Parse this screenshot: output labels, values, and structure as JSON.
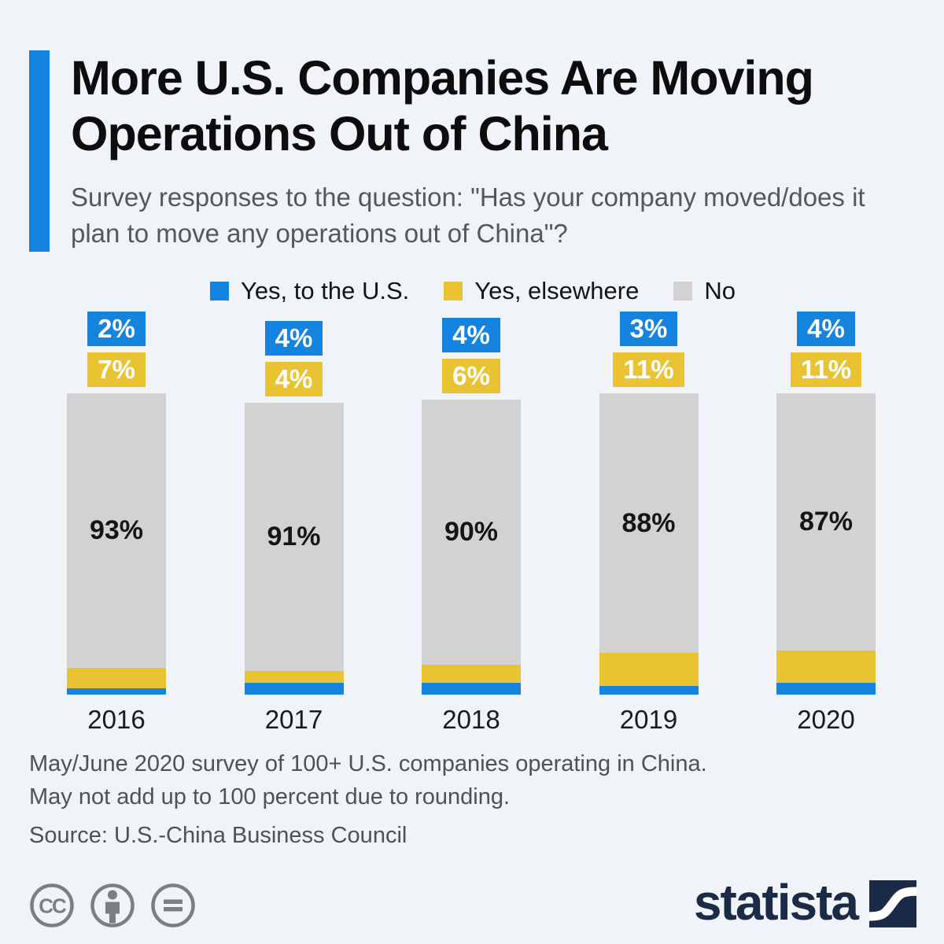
{
  "colors": {
    "background": "#f0f4f8",
    "accent": "#1584de",
    "blue": "#1584de",
    "yellow": "#e9c331",
    "gray": "#d2d2d2",
    "brand_navy": "#1b2b47",
    "icon_gray": "#788081"
  },
  "header": {
    "title_line1": "More U.S. Companies Are Moving",
    "title_line2": "Operations Out of China",
    "subtitle": "Survey responses to the question: \"Has your company moved/does it plan to move any operations out of China\"?"
  },
  "legend": [
    {
      "label": "Yes, to the U.S.",
      "color": "#1584de"
    },
    {
      "label": "Yes, elsewhere",
      "color": "#e9c331"
    },
    {
      "label": "No",
      "color": "#d2d2d2"
    }
  ],
  "chart_data": {
    "type": "bar",
    "stacked": true,
    "orientation": "vertical",
    "categories": [
      "2016",
      "2017",
      "2018",
      "2019",
      "2020"
    ],
    "series": [
      {
        "name": "Yes, to the U.S.",
        "color": "#1584de",
        "values": [
          2,
          4,
          4,
          3,
          4
        ]
      },
      {
        "name": "Yes, elsewhere",
        "color": "#e9c331",
        "values": [
          7,
          4,
          6,
          11,
          11
        ]
      },
      {
        "name": "No",
        "color": "#d2d2d2",
        "values": [
          93,
          91,
          90,
          88,
          87
        ]
      }
    ],
    "value_suffix": "%",
    "segment_order_top_to_bottom": [
      "No",
      "Yes, elsewhere",
      "Yes, to the U.S."
    ],
    "callout_labels_above_bars": [
      "Yes, to the U.S.",
      "Yes, elsewhere"
    ],
    "axis": {
      "grid": false,
      "y_axis_shown": false
    },
    "legend_position": "top-center"
  },
  "footer": {
    "note_line1": "May/June 2020 survey of 100+ U.S. companies operating in China.",
    "note_line2": "May not add up to 100 percent due to rounding.",
    "source": "Source: U.S.-China Business Council"
  },
  "branding": {
    "logo_text": "statista",
    "license_icons": [
      "cc-icon",
      "attribution-icon",
      "no-derivatives-icon"
    ]
  }
}
